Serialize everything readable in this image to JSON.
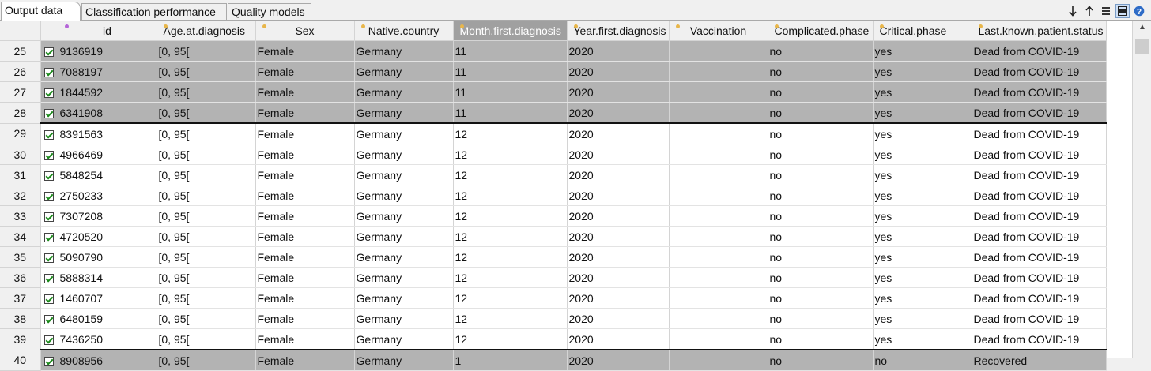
{
  "tabs": [
    {
      "label": "Output data",
      "active": true
    },
    {
      "label": "Classification performance",
      "active": false
    },
    {
      "label": "Quality models",
      "active": false
    }
  ],
  "toolbar": {
    "icons": [
      "sort-down-icon",
      "sort-up-icon",
      "list-view-icon",
      "table-view-icon",
      "help-icon"
    ]
  },
  "columns": [
    {
      "label": "id",
      "dot": "purple"
    },
    {
      "label": "Age.at.diagnosis",
      "dot": "yellow"
    },
    {
      "label": "Sex",
      "dot": "yellow"
    },
    {
      "label": "Native.country",
      "dot": "yellow"
    },
    {
      "label": "Month.first.diagnosis",
      "dot": "yellow",
      "selected": true
    },
    {
      "label": "Year.first.diagnosis",
      "dot": "yellow"
    },
    {
      "label": "Vaccination",
      "dot": "yellow"
    },
    {
      "label": "Complicated.phase",
      "dot": "yellow"
    },
    {
      "label": "Critical.phase",
      "dot": "yellow"
    },
    {
      "label": "Last.known.patient.status",
      "dot": "yellow"
    }
  ],
  "rows": [
    {
      "num": "25",
      "checked": true,
      "highlight": true,
      "sep_after": false,
      "cells": [
        "9136919",
        "[0, 95[",
        "Female",
        "Germany",
        "11",
        "2020",
        "",
        "no",
        "yes",
        "Dead from COVID-19"
      ]
    },
    {
      "num": "26",
      "checked": true,
      "highlight": true,
      "sep_after": false,
      "cells": [
        "7088197",
        "[0, 95[",
        "Female",
        "Germany",
        "11",
        "2020",
        "",
        "no",
        "yes",
        "Dead from COVID-19"
      ]
    },
    {
      "num": "27",
      "checked": true,
      "highlight": true,
      "sep_after": false,
      "cells": [
        "1844592",
        "[0, 95[",
        "Female",
        "Germany",
        "11",
        "2020",
        "",
        "no",
        "yes",
        "Dead from COVID-19"
      ]
    },
    {
      "num": "28",
      "checked": true,
      "highlight": true,
      "sep_after": true,
      "cells": [
        "6341908",
        "[0, 95[",
        "Female",
        "Germany",
        "11",
        "2020",
        "",
        "no",
        "yes",
        "Dead from COVID-19"
      ]
    },
    {
      "num": "29",
      "checked": true,
      "highlight": false,
      "sep_after": false,
      "cells": [
        "8391563",
        "[0, 95[",
        "Female",
        "Germany",
        "12",
        "2020",
        "",
        "no",
        "yes",
        "Dead from COVID-19"
      ]
    },
    {
      "num": "30",
      "checked": true,
      "highlight": false,
      "sep_after": false,
      "cells": [
        "4966469",
        "[0, 95[",
        "Female",
        "Germany",
        "12",
        "2020",
        "",
        "no",
        "yes",
        "Dead from COVID-19"
      ]
    },
    {
      "num": "31",
      "checked": true,
      "highlight": false,
      "sep_after": false,
      "cells": [
        "5848254",
        "[0, 95[",
        "Female",
        "Germany",
        "12",
        "2020",
        "",
        "no",
        "yes",
        "Dead from COVID-19"
      ]
    },
    {
      "num": "32",
      "checked": true,
      "highlight": false,
      "sep_after": false,
      "cells": [
        "2750233",
        "[0, 95[",
        "Female",
        "Germany",
        "12",
        "2020",
        "",
        "no",
        "yes",
        "Dead from COVID-19"
      ]
    },
    {
      "num": "33",
      "checked": true,
      "highlight": false,
      "sep_after": false,
      "cells": [
        "7307208",
        "[0, 95[",
        "Female",
        "Germany",
        "12",
        "2020",
        "",
        "no",
        "yes",
        "Dead from COVID-19"
      ]
    },
    {
      "num": "34",
      "checked": true,
      "highlight": false,
      "sep_after": false,
      "cells": [
        "4720520",
        "[0, 95[",
        "Female",
        "Germany",
        "12",
        "2020",
        "",
        "no",
        "yes",
        "Dead from COVID-19"
      ]
    },
    {
      "num": "35",
      "checked": true,
      "highlight": false,
      "sep_after": false,
      "cells": [
        "5090790",
        "[0, 95[",
        "Female",
        "Germany",
        "12",
        "2020",
        "",
        "no",
        "yes",
        "Dead from COVID-19"
      ]
    },
    {
      "num": "36",
      "checked": true,
      "highlight": false,
      "sep_after": false,
      "cells": [
        "5888314",
        "[0, 95[",
        "Female",
        "Germany",
        "12",
        "2020",
        "",
        "no",
        "yes",
        "Dead from COVID-19"
      ]
    },
    {
      "num": "37",
      "checked": true,
      "highlight": false,
      "sep_after": false,
      "cells": [
        "1460707",
        "[0, 95[",
        "Female",
        "Germany",
        "12",
        "2020",
        "",
        "no",
        "yes",
        "Dead from COVID-19"
      ]
    },
    {
      "num": "38",
      "checked": true,
      "highlight": false,
      "sep_after": false,
      "cells": [
        "6480159",
        "[0, 95[",
        "Female",
        "Germany",
        "12",
        "2020",
        "",
        "no",
        "yes",
        "Dead from COVID-19"
      ]
    },
    {
      "num": "39",
      "checked": true,
      "highlight": false,
      "sep_after": true,
      "cells": [
        "7436250",
        "[0, 95[",
        "Female",
        "Germany",
        "12",
        "2020",
        "",
        "no",
        "yes",
        "Dead from COVID-19"
      ]
    },
    {
      "num": "40",
      "checked": true,
      "highlight": true,
      "sep_after": false,
      "cells": [
        "8908956",
        "[0, 95[",
        "Female",
        "Germany",
        "1",
        "2020",
        "",
        "no",
        "no",
        "Recovered"
      ]
    }
  ],
  "colors": {
    "highlight_row": "#b3b3b3",
    "selected_header": "#a0a0a0",
    "check": "#1b8a1b"
  }
}
